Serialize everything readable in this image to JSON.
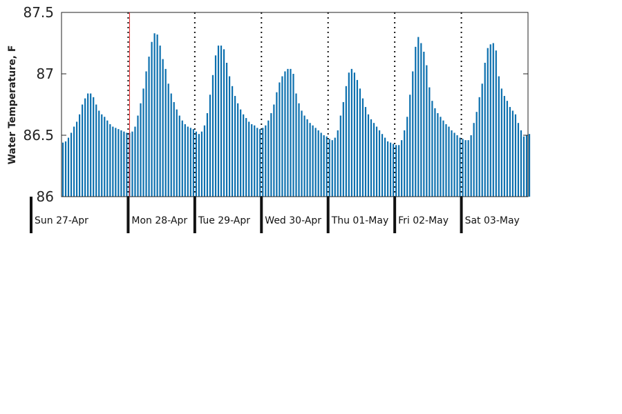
{
  "chart_data": {
    "type": "bar",
    "title": "",
    "xlabel": "",
    "ylabel": "Water Temperature, F",
    "ylim": [
      86,
      87.5
    ],
    "yticks": [
      "86",
      "86.5",
      "87",
      "87.5"
    ],
    "x_range_hours": [
      0,
      168
    ],
    "bar_interval_hours": 1,
    "grid": false,
    "legend": "none",
    "colors": {
      "bar": "#0b6fae",
      "current_time_marker": "#e41a1c",
      "day_divider": "#111111"
    },
    "day_labels": [
      "Sun 27-Apr",
      "Mon 28-Apr",
      "Tue 29-Apr",
      "Wed 30-Apr",
      "Thu 01-May",
      "Fri 02-May",
      "Sat 03-May"
    ],
    "current_time_marker_hour": 24,
    "values": [
      86.44,
      86.45,
      86.48,
      86.52,
      86.57,
      86.61,
      86.67,
      86.75,
      86.8,
      86.84,
      86.84,
      86.81,
      86.75,
      86.7,
      86.67,
      86.65,
      86.62,
      86.59,
      86.57,
      86.56,
      86.55,
      86.54,
      86.53,
      86.52,
      86.52,
      86.53,
      86.57,
      86.66,
      86.76,
      86.88,
      87.02,
      87.14,
      87.26,
      87.33,
      87.32,
      87.23,
      87.12,
      87.04,
      86.92,
      86.84,
      86.77,
      86.71,
      86.66,
      86.62,
      86.59,
      86.57,
      86.56,
      86.55,
      86.53,
      86.51,
      86.53,
      86.58,
      86.68,
      86.83,
      86.99,
      87.15,
      87.23,
      87.23,
      87.2,
      87.09,
      86.98,
      86.9,
      86.82,
      86.76,
      86.71,
      86.67,
      86.64,
      86.61,
      86.59,
      86.58,
      86.56,
      86.55,
      86.56,
      86.58,
      86.62,
      86.68,
      86.75,
      86.85,
      86.93,
      86.98,
      87.02,
      87.04,
      87.04,
      87.0,
      86.84,
      86.76,
      86.7,
      86.66,
      86.63,
      86.6,
      86.58,
      86.56,
      86.54,
      86.52,
      86.5,
      86.49,
      86.47,
      86.46,
      86.48,
      86.54,
      86.66,
      86.77,
      86.9,
      87.01,
      87.04,
      87.01,
      86.95,
      86.88,
      86.8,
      86.73,
      86.67,
      86.63,
      86.6,
      86.57,
      86.54,
      86.51,
      86.48,
      86.45,
      86.44,
      86.43,
      86.42,
      86.42,
      86.46,
      86.54,
      86.65,
      86.83,
      87.02,
      87.22,
      87.3,
      87.25,
      87.18,
      87.07,
      86.89,
      86.78,
      86.72,
      86.68,
      86.65,
      86.62,
      86.59,
      86.57,
      86.54,
      86.52,
      86.5,
      86.48,
      86.47,
      86.46,
      86.46,
      86.5,
      86.6,
      86.69,
      86.81,
      86.92,
      87.09,
      87.21,
      87.24,
      87.25,
      87.19,
      86.98,
      86.88,
      86.82,
      86.78,
      86.73,
      86.7,
      86.67,
      86.6,
      86.54,
      86.49,
      86.5,
      86.51
    ]
  }
}
